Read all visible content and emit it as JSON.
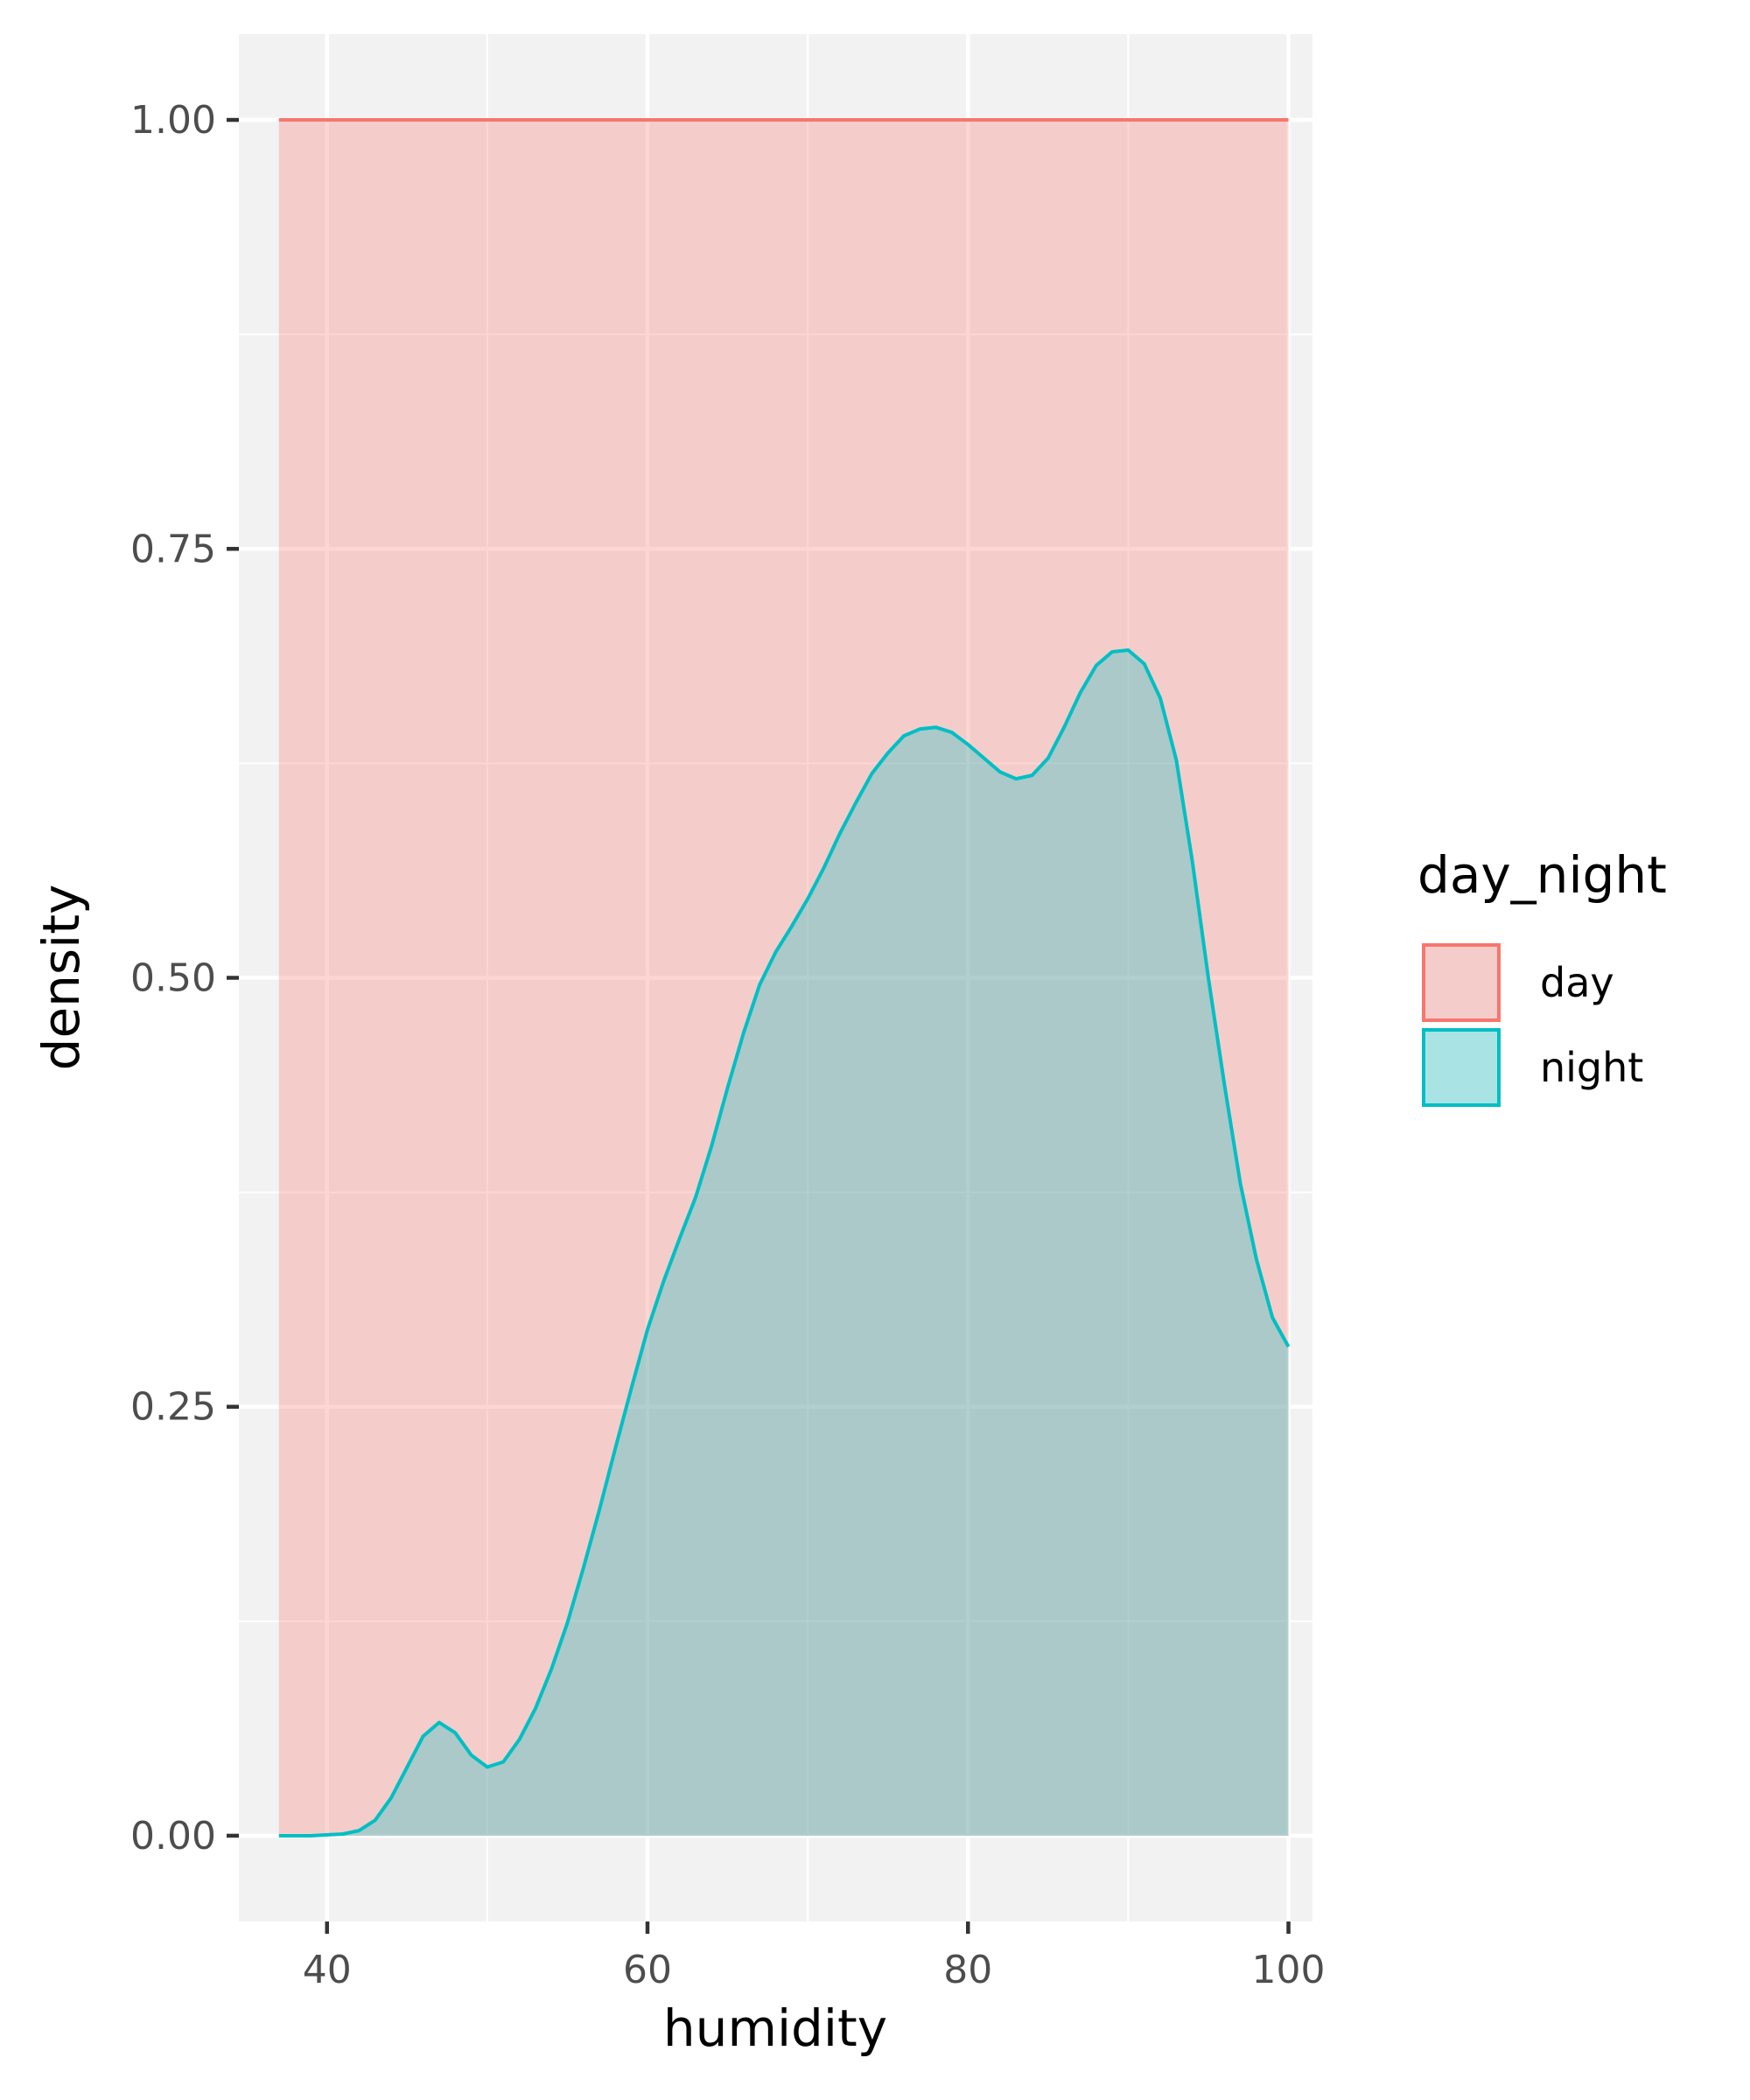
{
  "chart_data": {
    "type": "area",
    "title": "",
    "xlabel": "humidity",
    "ylabel": "density",
    "xlim": [
      34.5,
      101.5
    ],
    "ylim": [
      -0.05,
      1.05
    ],
    "x_ticks": [
      40,
      60,
      80,
      100
    ],
    "x_tick_labels": [
      "40",
      "60",
      "80",
      "100"
    ],
    "y_ticks": [
      0,
      0.25,
      0.5,
      0.75,
      1
    ],
    "y_tick_labels": [
      "0.00",
      "0.25",
      "0.50",
      "0.75",
      "1.00"
    ],
    "grid": true,
    "legend": {
      "title": "day_night",
      "placement": "right"
    },
    "series": [
      {
        "name": "day",
        "line_color": "#F8766D",
        "fill_color": "#F8766D",
        "fill_opacity": 0.3,
        "x": [
          37,
          100
        ],
        "y": [
          1.0,
          1.0
        ]
      },
      {
        "name": "night",
        "line_color": "#00BFC4",
        "fill_color": "#00BFC4",
        "fill_opacity": 0.3,
        "x": [
          37,
          39,
          41,
          42,
          43,
          44,
          45,
          46,
          47,
          48,
          49,
          50,
          51,
          52,
          53,
          54,
          55,
          56,
          57,
          58,
          59,
          60,
          61,
          62,
          63,
          64,
          65,
          66,
          67,
          68,
          69,
          70,
          71,
          72,
          73,
          74,
          75,
          76,
          77,
          78,
          79,
          80,
          81,
          82,
          83,
          84,
          85,
          86,
          87,
          88,
          89,
          90,
          91,
          92,
          93,
          94,
          95,
          96,
          97,
          98,
          99,
          100
        ],
        "y": [
          0.0,
          0.0,
          0.001,
          0.003,
          0.009,
          0.022,
          0.04,
          0.058,
          0.066,
          0.06,
          0.047,
          0.04,
          0.043,
          0.056,
          0.074,
          0.097,
          0.124,
          0.156,
          0.19,
          0.226,
          0.261,
          0.295,
          0.323,
          0.348,
          0.372,
          0.402,
          0.436,
          0.468,
          0.496,
          0.515,
          0.53,
          0.546,
          0.564,
          0.584,
          0.602,
          0.619,
          0.631,
          0.641,
          0.645,
          0.646,
          0.643,
          0.636,
          0.628,
          0.62,
          0.616,
          0.618,
          0.628,
          0.646,
          0.666,
          0.682,
          0.69,
          0.691,
          0.683,
          0.663,
          0.627,
          0.568,
          0.5,
          0.438,
          0.38,
          0.336,
          0.302,
          0.285
        ]
      }
    ]
  }
}
